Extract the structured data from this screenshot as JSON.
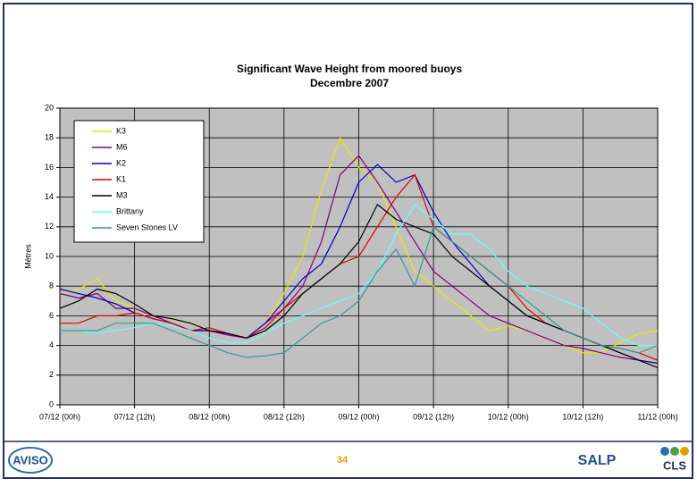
{
  "chart_data": {
    "type": "line",
    "title": "Significant Wave Height from moored buoys",
    "subtitle": "Decembre 2007",
    "y_label": "Mètres",
    "x": [
      0,
      3,
      6,
      9,
      12,
      15,
      18,
      21,
      24,
      27,
      30,
      33,
      36,
      39,
      42,
      45,
      48,
      51,
      54,
      57,
      60,
      63,
      66,
      69,
      72,
      75,
      78,
      81,
      84,
      87,
      90,
      93,
      96
    ],
    "xlim": [
      0,
      96
    ],
    "xticks": [
      {
        "value": 0,
        "label": "07/12 (00h)"
      },
      {
        "value": 12,
        "label": "07/12 (12h)"
      },
      {
        "value": 24,
        "label": "08/12 (00h)"
      },
      {
        "value": 36,
        "label": "08/12 (12h)"
      },
      {
        "value": 48,
        "label": "09/12 (00h)"
      },
      {
        "value": 60,
        "label": "09/12 (12h)"
      },
      {
        "value": 72,
        "label": "10/12 (00h)"
      },
      {
        "value": 84,
        "label": "10/12 (12h)"
      },
      {
        "value": 96,
        "label": "11/12 (00h)"
      }
    ],
    "ylim": [
      0,
      20
    ],
    "yticks": [
      0,
      2,
      4,
      6,
      8,
      10,
      12,
      14,
      16,
      18,
      20
    ],
    "grid": true,
    "legend": "upper left",
    "series": [
      {
        "name": "K3",
        "color": "#e8e800",
        "values": [
          7.5,
          7.8,
          8.5,
          7,
          6.5,
          6,
          5.8,
          5.5,
          5,
          4.8,
          4.5,
          5.5,
          7.5,
          10,
          14.5,
          18,
          16,
          15,
          12,
          9,
          8,
          7,
          6,
          5,
          5.3,
          5,
          4.5,
          4,
          3.5,
          3.5,
          4.2,
          4.8,
          5
        ]
      },
      {
        "name": "M6",
        "color": "#800080",
        "values": [
          7.5,
          7.2,
          7.5,
          6.5,
          6.5,
          6,
          5.5,
          5,
          5,
          4.7,
          4.5,
          5.5,
          6.5,
          8,
          11,
          15.5,
          16.8,
          15,
          13,
          11,
          9,
          8,
          7,
          6,
          5.5,
          5,
          4.5,
          4,
          3.8,
          3.5,
          3.2,
          3,
          2.8
        ]
      },
      {
        "name": "K2",
        "color": "#0000cc",
        "values": [
          7.8,
          7.5,
          7.2,
          6.8,
          6.2,
          5.8,
          5.5,
          5,
          5,
          4.8,
          4.5,
          5.5,
          7,
          8.5,
          9.5,
          12,
          15,
          16.2,
          15,
          15.5,
          13,
          11,
          9.5,
          8,
          7,
          6,
          5.5,
          5,
          4.5,
          4,
          3.5,
          3,
          2.8
        ]
      },
      {
        "name": "K1",
        "color": "#e00000",
        "values": [
          5.5,
          5.5,
          6,
          6,
          6.2,
          5.8,
          5.5,
          5,
          5.2,
          4.8,
          4.5,
          5.2,
          6.5,
          7.5,
          8.5,
          9.5,
          10,
          12,
          14,
          15.5,
          12,
          11,
          10,
          9,
          8,
          6.5,
          5.5,
          5,
          4.5,
          4,
          3.8,
          3.5,
          3
        ]
      },
      {
        "name": "M3",
        "color": "#000000",
        "values": [
          6.5,
          7,
          7.8,
          7.5,
          6.8,
          6,
          5.8,
          5.5,
          5,
          4.8,
          4.5,
          5,
          6,
          7.5,
          8.5,
          9.5,
          11,
          13.5,
          12.5,
          12,
          11.5,
          10,
          9,
          8,
          7,
          6,
          5.5,
          5,
          4.5,
          4,
          3.5,
          3,
          2.5
        ]
      },
      {
        "name": "Brittany",
        "color": "#66ffff",
        "values": [
          5,
          5,
          4.8,
          5,
          5.2,
          5.5,
          5.3,
          5,
          4.5,
          4.2,
          4.2,
          4.8,
          5.5,
          6,
          6.5,
          7,
          7.5,
          9,
          11.5,
          13.5,
          12.5,
          11.5,
          11.5,
          10.5,
          9,
          8,
          7.5,
          7,
          6.5,
          5.5,
          4.5,
          4,
          4
        ]
      },
      {
        "name": "Seven Stones LV",
        "color": "#339999",
        "values": [
          5,
          5,
          5,
          5.5,
          5.5,
          5.5,
          5,
          4.5,
          4,
          3.5,
          3.2,
          3.3,
          3.5,
          4.5,
          5.5,
          6,
          7,
          9,
          10.5,
          8,
          12,
          11,
          10,
          9,
          8,
          7,
          6,
          5,
          4.5,
          4,
          3.8,
          3.5,
          4
        ]
      }
    ]
  },
  "footer": {
    "page_number": "34",
    "logos": [
      "AVISO",
      "SALP",
      "CLS"
    ]
  }
}
